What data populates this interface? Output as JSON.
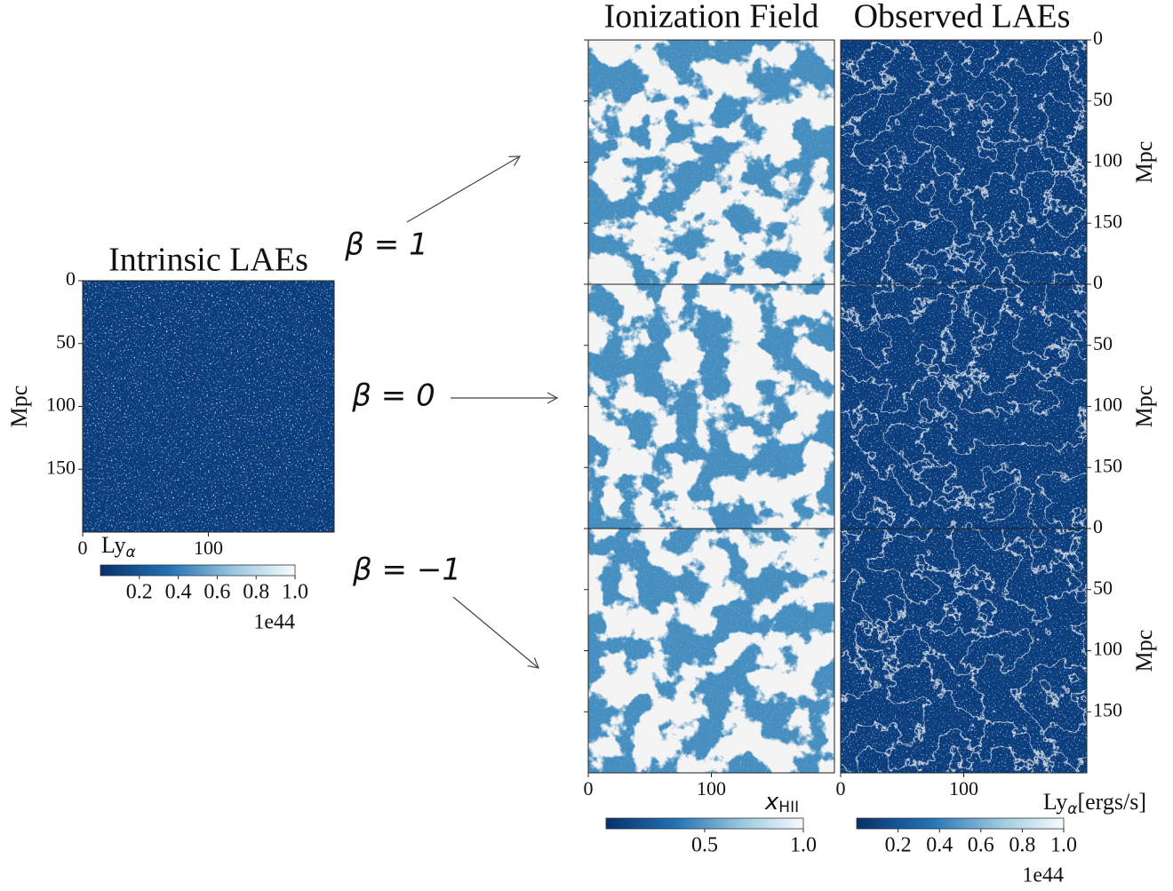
{
  "chart_data": [
    {
      "type": "heatmap",
      "title": "Intrinsic LAEs",
      "ylabel": "Mpc",
      "xlim": [
        0,
        200
      ],
      "xticks": [
        0,
        100
      ],
      "ylim": [
        0,
        200
      ],
      "yticks": [
        0,
        50,
        100,
        150
      ],
      "colorbar": {
        "label": "Ly",
        "label_sub": "α",
        "clim": [
          0,
          1
        ],
        "ticks": [
          0.2,
          0.4,
          0.6,
          0.8,
          {
            "value": 1,
            "label": "1.0"
          }
        ],
        "offset_text": "1e44"
      }
    },
    {
      "type": "heatmap-grid",
      "columns": [
        "Ionization Field",
        "Observed LAEs"
      ],
      "rows": [
        "β = 1",
        "β = 0",
        "β = −1"
      ],
      "ylabel": "Mpc",
      "xlim": [
        0,
        200
      ],
      "xticks": [
        0,
        100
      ],
      "ylim": [
        0,
        200
      ],
      "yticks": [
        0,
        50,
        100,
        150
      ],
      "colorbars": [
        {
          "label": "x",
          "label_sub": "HII",
          "clim": [
            0,
            1
          ],
          "ticks": [
            0.5,
            {
              "value": 1,
              "label": "1.0"
            }
          ]
        },
        {
          "label": "Ly",
          "label_sub": "α",
          "label_suffix": "[ergs/s]",
          "clim": [
            0,
            1
          ],
          "ticks": [
            0.2,
            0.4,
            0.6,
            0.8,
            {
              "value": 1,
              "label": "1.0"
            }
          ],
          "offset_text": "1e44"
        }
      ]
    }
  ]
}
